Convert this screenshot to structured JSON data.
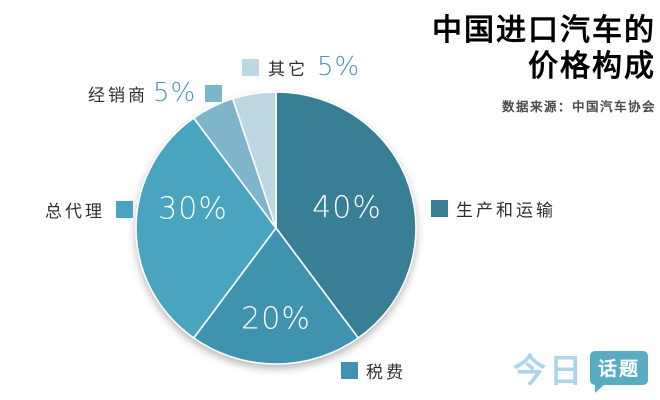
{
  "title": {
    "line1": "中国进口汽车的",
    "line2": "价格构成",
    "source": "数据来源：中国汽车协会"
  },
  "chart_data": {
    "type": "pie",
    "title": "中国进口汽车的价格构成",
    "start_angle_deg": 0,
    "direction": "clockwise",
    "legend_position": "around",
    "slices": [
      {
        "label": "生产和运输",
        "value": 40,
        "pct_label": "40%",
        "color": "#387E95",
        "legend_side": "right"
      },
      {
        "label": "税费",
        "value": 20,
        "pct_label": "20%",
        "color": "#3F93AF",
        "legend_side": "bottom"
      },
      {
        "label": "总代理",
        "value": 30,
        "pct_label": "30%",
        "color": "#48A4BF",
        "legend_side": "left"
      },
      {
        "label": "经销商",
        "value": 5,
        "pct_label": "5%",
        "color": "#7FB5CA",
        "legend_side": "top-left"
      },
      {
        "label": "其它",
        "value": 5,
        "pct_label": "5%",
        "color": "#BDD8E3",
        "legend_side": "top"
      }
    ]
  },
  "watermark": {
    "text_left": "今日",
    "badge": "话题"
  },
  "colors": {
    "percent_text": "#4A96B5",
    "label_text": "#2F2F2F",
    "source_text": "#4A4A4A",
    "watermark_blue": "#ABD5EA",
    "watermark_badge": "#58ACC2"
  }
}
